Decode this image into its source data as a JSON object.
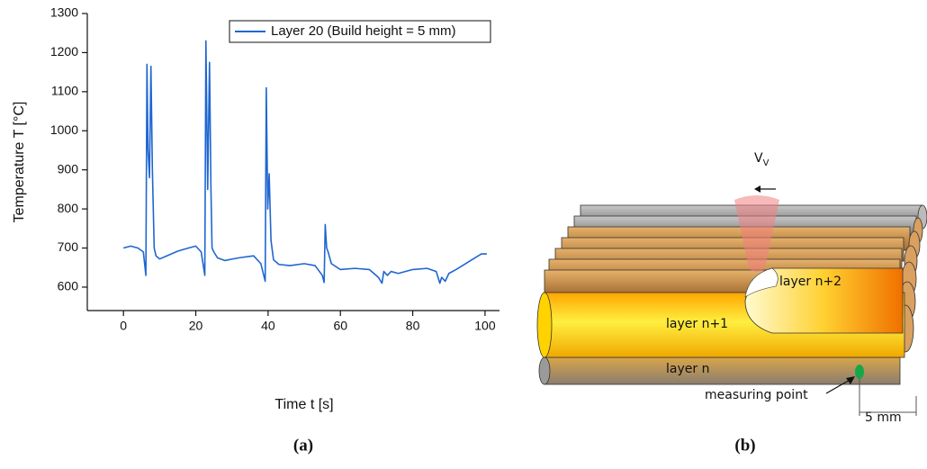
{
  "chart_data": {
    "type": "line",
    "x_label": "Time t [s]",
    "y_label": "Temperature T [°C]",
    "xlim": [
      -10,
      104
    ],
    "ylim": [
      540,
      1300
    ],
    "xticks": [
      0,
      20,
      40,
      60,
      80,
      100
    ],
    "yticks": [
      600,
      700,
      800,
      900,
      1000,
      1100,
      1200,
      1300
    ],
    "legend": "upper right",
    "series": [
      {
        "name": "Layer 20 (Build height = 5 mm)",
        "color": "#1f66d1",
        "x": [
          0,
          2,
          4,
          5.5,
          6.2,
          6.5,
          6.8,
          7.2,
          7.6,
          8,
          8.5,
          9,
          10,
          12,
          15,
          18,
          20,
          21.5,
          22.5,
          22.8,
          23.3,
          23.8,
          24.2,
          24.5,
          25,
          26,
          28,
          32,
          36,
          38,
          39.2,
          39.5,
          39.9,
          40.3,
          40.8,
          41.5,
          43,
          46,
          50,
          53,
          55,
          55.5,
          55.8,
          56.2,
          56.6,
          57.5,
          60,
          64,
          68,
          70.5,
          71.5,
          72,
          73,
          74,
          76,
          80,
          84,
          86.5,
          87.5,
          88,
          89,
          90,
          92,
          96,
          99,
          100.5
        ],
        "values": [
          700,
          705,
          700,
          690,
          630,
          1170,
          950,
          880,
          1165,
          900,
          700,
          680,
          672,
          680,
          692,
          700,
          705,
          690,
          630,
          1230,
          850,
          1175,
          850,
          700,
          690,
          675,
          668,
          675,
          680,
          660,
          615,
          1110,
          800,
          890,
          720,
          670,
          658,
          655,
          660,
          655,
          630,
          612,
          760,
          700,
          690,
          660,
          645,
          648,
          645,
          625,
          610,
          640,
          630,
          640,
          635,
          645,
          648,
          640,
          610,
          625,
          615,
          635,
          645,
          668,
          685,
          685
        ]
      }
    ]
  },
  "diagram": {
    "velocity_symbol": "V",
    "velocity_subscript": "V",
    "layer_top": "layer n+2",
    "layer_middle": "layer n+1",
    "layer_bottom": "layer n",
    "measuring_point": "measuring point",
    "dimension": "5 mm"
  },
  "panels": [
    "(a)",
    "(b)"
  ]
}
